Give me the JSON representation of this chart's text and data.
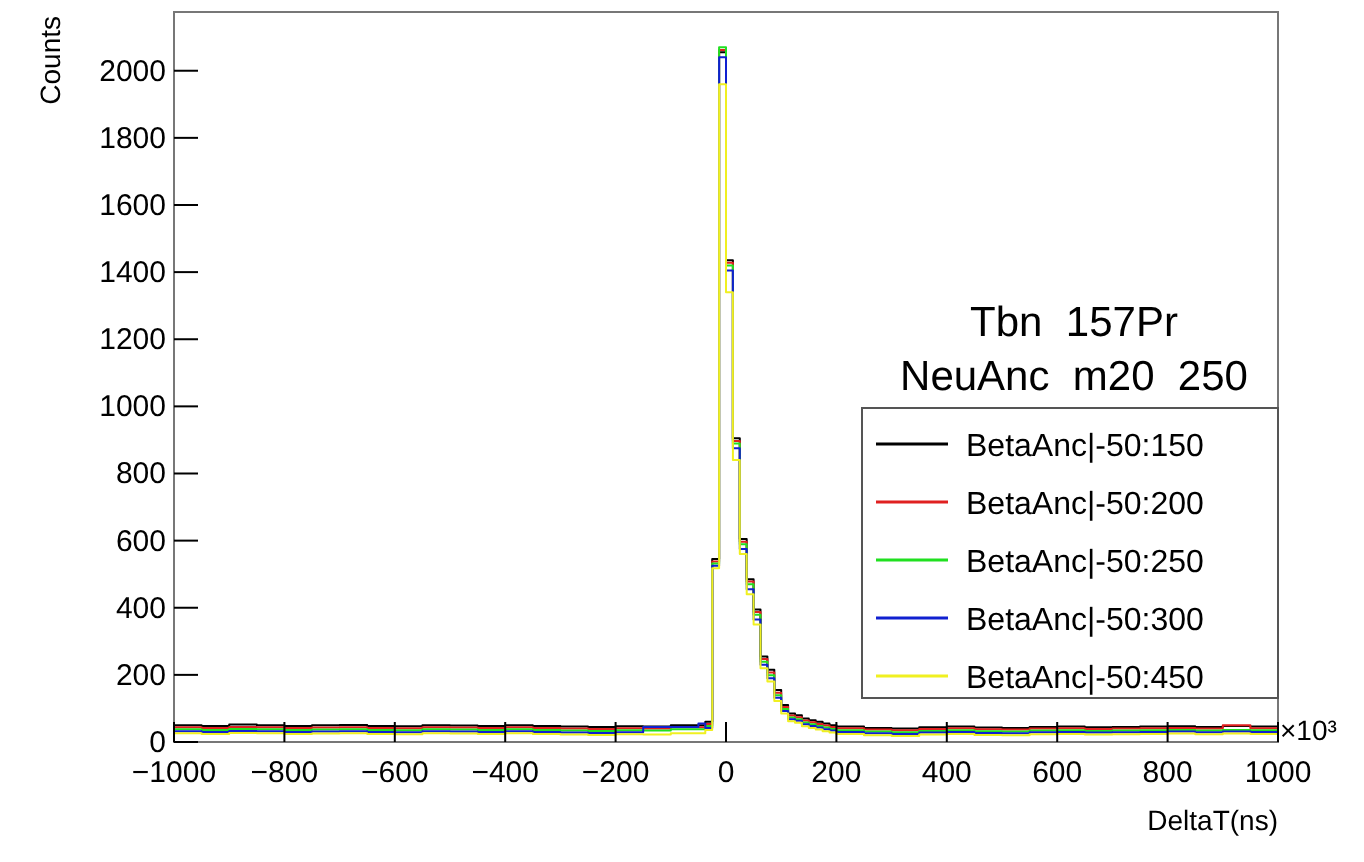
{
  "chart_data": {
    "type": "histogram",
    "title": "Tbn  157Pr",
    "subtitle": "NeuAnc  m20  250",
    "xlabel": "DeltaT(ns)",
    "ylabel": "Counts",
    "annotations": [
      "×10³"
    ],
    "bins": [
      -1000,
      -950,
      -900,
      -850,
      -800,
      -750,
      -700,
      -650,
      -600,
      -550,
      -500,
      -450,
      -400,
      -350,
      -300,
      -250,
      -200,
      -150,
      -100,
      -50,
      -37.5,
      -25,
      -12.5,
      0,
      12.5,
      25,
      37.5,
      50,
      62.5,
      75,
      87.5,
      100,
      112.5,
      125,
      137.5,
      150,
      162.5,
      175,
      187.5,
      200,
      250,
      300,
      350,
      400,
      450,
      500,
      550,
      600,
      650,
      700,
      750,
      800,
      850,
      900,
      950,
      1000
    ],
    "xlim": [
      -1000,
      1000
    ],
    "xticks": [
      -1000,
      -800,
      -600,
      -400,
      -200,
      0,
      200,
      400,
      600,
      800,
      1000
    ],
    "ylim": [
      0,
      2175
    ],
    "yticks": [
      0,
      200,
      400,
      600,
      800,
      1000,
      1200,
      1400,
      1600,
      1800,
      2000
    ],
    "grid": false,
    "legend": "right",
    "series": [
      {
        "name": "BetaAnc|-50:150",
        "color": "#000000",
        "values": [
          50,
          48,
          52,
          50,
          48,
          50,
          51,
          48,
          47,
          50,
          49,
          48,
          50,
          48,
          46,
          45,
          47,
          46,
          50,
          50,
          60,
          545,
          2055,
          1435,
          905,
          605,
          485,
          395,
          255,
          215,
          155,
          110,
          85,
          80,
          70,
          65,
          60,
          55,
          50,
          46,
          42,
          40,
          44,
          46,
          43,
          42,
          45,
          46,
          44,
          45,
          46,
          47,
          45,
          48,
          46
        ]
      },
      {
        "name": "BetaAnc|-50:200",
        "color": "#e02020",
        "values": [
          44,
          42,
          45,
          44,
          42,
          43,
          44,
          42,
          41,
          44,
          43,
          42,
          44,
          42,
          40,
          39,
          41,
          40,
          44,
          44,
          54,
          538,
          2062,
          1428,
          897,
          597,
          478,
          387,
          247,
          207,
          147,
          104,
          79,
          74,
          64,
          59,
          54,
          49,
          45,
          41,
          37,
          35,
          39,
          41,
          38,
          37,
          40,
          41,
          39,
          40,
          41,
          42,
          40,
          50,
          41
        ]
      },
      {
        "name": "BetaAnc|-50:250",
        "color": "#20e020",
        "values": [
          38,
          36,
          39,
          38,
          36,
          37,
          38,
          36,
          35,
          38,
          37,
          36,
          38,
          36,
          34,
          33,
          35,
          34,
          38,
          38,
          48,
          532,
          2070,
          1420,
          889,
          589,
          470,
          379,
          239,
          199,
          139,
          98,
          73,
          68,
          58,
          53,
          48,
          43,
          39,
          35,
          31,
          29,
          33,
          35,
          32,
          31,
          34,
          35,
          33,
          34,
          35,
          36,
          34,
          36,
          35
        ]
      },
      {
        "name": "BetaAnc|-50:300",
        "color": "#1020d0",
        "values": [
          32,
          30,
          33,
          32,
          30,
          31,
          32,
          30,
          29,
          32,
          31,
          30,
          32,
          30,
          28,
          27,
          29,
          45,
          45,
          55,
          42,
          525,
          2040,
          1405,
          875,
          575,
          455,
          365,
          230,
          190,
          132,
          92,
          68,
          63,
          53,
          48,
          43,
          38,
          34,
          30,
          26,
          24,
          28,
          30,
          27,
          26,
          29,
          30,
          28,
          29,
          30,
          31,
          29,
          31,
          30
        ]
      },
      {
        "name": "BetaAnc|-50:450",
        "color": "#f0f020",
        "values": [
          26,
          24,
          27,
          26,
          24,
          25,
          26,
          24,
          23,
          26,
          25,
          24,
          26,
          24,
          22,
          21,
          23,
          22,
          26,
          26,
          36,
          518,
          1960,
          1340,
          840,
          560,
          440,
          350,
          220,
          180,
          122,
          85,
          62,
          57,
          47,
          42,
          37,
          32,
          28,
          24,
          20,
          18,
          22,
          24,
          21,
          20,
          23,
          24,
          22,
          23,
          24,
          25,
          23,
          25,
          24
        ]
      }
    ]
  }
}
